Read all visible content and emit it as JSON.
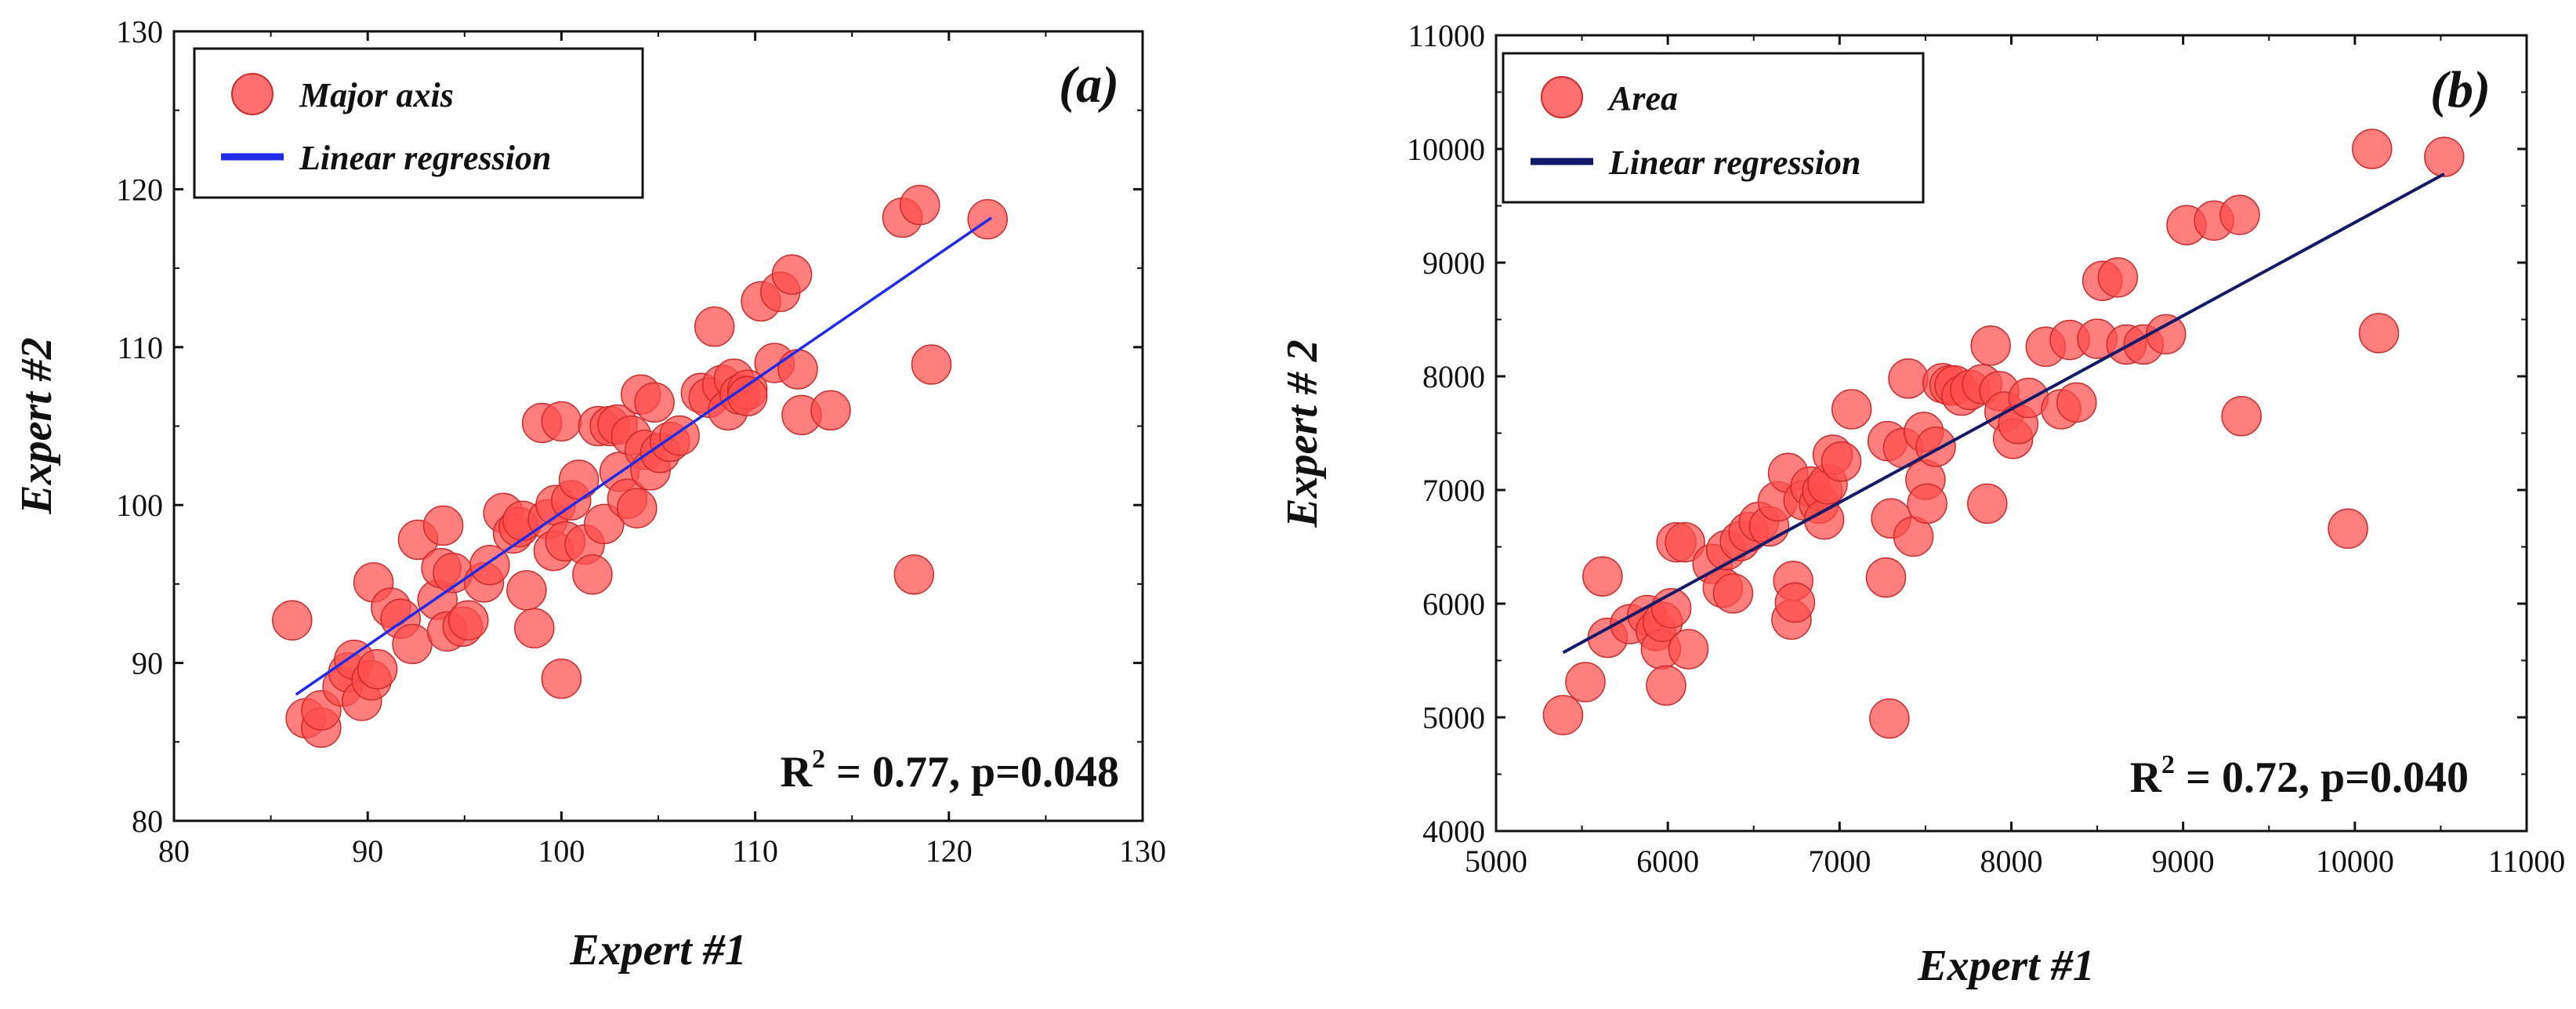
{
  "chart_data": [
    {
      "type": "scatter",
      "panel_label": "(a)",
      "xlabel": "Expert #1",
      "ylabel": "Expert #2",
      "xlim": [
        80,
        130
      ],
      "ylim": [
        80,
        130
      ],
      "xticks": [
        "80",
        "90",
        "100",
        "110",
        "120",
        "130"
      ],
      "yticks": [
        "80",
        "90",
        "100",
        "110",
        "120",
        "130"
      ],
      "legend": {
        "position": "top-left",
        "points_label": "Major axis",
        "line_label": "Linear regression"
      },
      "annotation": {
        "r2_label": "R",
        "r2_sup": "2",
        "r2_value": " = 0.77, p=0.048"
      },
      "regression": {
        "x": [
          86.3,
          122.2
        ],
        "y": [
          88.0,
          118.2
        ]
      },
      "colors": {
        "point_fill": "#ff4d4d",
        "point_stroke": "#cc2a2a",
        "line": "#1f2be6"
      },
      "points": [
        [
          86.1,
          92.7
        ],
        [
          86.8,
          86.5
        ],
        [
          87.6,
          85.9
        ],
        [
          87.6,
          87.0
        ],
        [
          88.7,
          88.5
        ],
        [
          89.0,
          89.4
        ],
        [
          89.3,
          90.2
        ],
        [
          89.7,
          87.6
        ],
        [
          90.2,
          88.9
        ],
        [
          90.5,
          89.6
        ],
        [
          90.3,
          95.1
        ],
        [
          91.2,
          93.5
        ],
        [
          91.7,
          92.8
        ],
        [
          92.3,
          91.2
        ],
        [
          92.6,
          97.8
        ],
        [
          93.6,
          94.0
        ],
        [
          93.8,
          96.0
        ],
        [
          93.9,
          98.7
        ],
        [
          94.1,
          92.0
        ],
        [
          94.4,
          95.7
        ],
        [
          94.9,
          92.3
        ],
        [
          95.2,
          92.7
        ],
        [
          96.0,
          95.1
        ],
        [
          96.3,
          96.2
        ],
        [
          97.0,
          99.5
        ],
        [
          97.5,
          98.2
        ],
        [
          97.8,
          98.6
        ],
        [
          98.0,
          99.0
        ],
        [
          98.2,
          94.6
        ],
        [
          98.6,
          92.2
        ],
        [
          99.0,
          105.2
        ],
        [
          99.3,
          99.1
        ],
        [
          99.6,
          97.1
        ],
        [
          99.7,
          100.0
        ],
        [
          100.0,
          89.0
        ],
        [
          100.0,
          105.3
        ],
        [
          100.2,
          97.7
        ],
        [
          100.5,
          100.3
        ],
        [
          100.9,
          101.6
        ],
        [
          101.2,
          97.5
        ],
        [
          101.6,
          95.6
        ],
        [
          101.9,
          105.0
        ],
        [
          102.2,
          98.8
        ],
        [
          102.5,
          105.0
        ],
        [
          102.9,
          105.1
        ],
        [
          103.0,
          102.1
        ],
        [
          103.4,
          100.4
        ],
        [
          103.6,
          104.4
        ],
        [
          103.9,
          99.8
        ],
        [
          104.1,
          107.0
        ],
        [
          104.3,
          103.5
        ],
        [
          104.6,
          102.2
        ],
        [
          104.8,
          106.5
        ],
        [
          105.1,
          103.3
        ],
        [
          105.6,
          104.0
        ],
        [
          106.1,
          104.4
        ],
        [
          107.2,
          107.1
        ],
        [
          107.6,
          106.8
        ],
        [
          107.9,
          111.3
        ],
        [
          108.3,
          107.6
        ],
        [
          108.6,
          106.0
        ],
        [
          108.9,
          108.0
        ],
        [
          109.2,
          107.0
        ],
        [
          109.6,
          107.3
        ],
        [
          109.6,
          106.9
        ],
        [
          110.3,
          112.9
        ],
        [
          111.0,
          109.0
        ],
        [
          111.3,
          113.5
        ],
        [
          111.9,
          114.6
        ],
        [
          112.2,
          108.6
        ],
        [
          112.4,
          105.7
        ],
        [
          113.9,
          106.0
        ],
        [
          117.6,
          118.2
        ],
        [
          118.2,
          95.6
        ],
        [
          118.5,
          119.0
        ],
        [
          119.1,
          108.9
        ],
        [
          122.0,
          118.1
        ]
      ]
    },
    {
      "type": "scatter",
      "panel_label": "(b)",
      "xlabel": "Expert #1",
      "ylabel": "Expert # 2",
      "xlim": [
        5000,
        11000
      ],
      "ylim": [
        4000,
        11000
      ],
      "xticks": [
        "5000",
        "6000",
        "7000",
        "8000",
        "9000",
        "10000",
        "11000"
      ],
      "yticks": [
        "4000",
        "5000",
        "6000",
        "7000",
        "8000",
        "9000",
        "10000",
        "11000"
      ],
      "legend": {
        "position": "top-left",
        "points_label": "Area",
        "line_label": "Linear regression"
      },
      "annotation": {
        "r2_label": "R",
        "r2_sup": "2",
        "r2_value": " = 0.72, p=0.040"
      },
      "regression": {
        "x": [
          5390,
          10520
        ],
        "y": [
          5570,
          9780
        ]
      },
      "colors": {
        "point_fill": "#ff4d4d",
        "point_stroke": "#cc2a2a",
        "line": "#141a6a"
      },
      "points": [
        [
          5390,
          5020
        ],
        [
          5520,
          5310
        ],
        [
          5620,
          6240
        ],
        [
          5650,
          5700
        ],
        [
          5780,
          5820
        ],
        [
          5880,
          5900
        ],
        [
          5930,
          5760
        ],
        [
          5960,
          5600
        ],
        [
          5970,
          5840
        ],
        [
          5990,
          5280
        ],
        [
          6020,
          5960
        ],
        [
          6050,
          6540
        ],
        [
          6100,
          6540
        ],
        [
          6120,
          5600
        ],
        [
          6260,
          6350
        ],
        [
          6320,
          6140
        ],
        [
          6340,
          6470
        ],
        [
          6380,
          6090
        ],
        [
          6420,
          6550
        ],
        [
          6470,
          6630
        ],
        [
          6530,
          6720
        ],
        [
          6590,
          6680
        ],
        [
          6640,
          6900
        ],
        [
          6700,
          7150
        ],
        [
          6720,
          5860
        ],
        [
          6730,
          6200
        ],
        [
          6740,
          6010
        ],
        [
          6790,
          6910
        ],
        [
          6830,
          7030
        ],
        [
          6880,
          6880
        ],
        [
          6900,
          6990
        ],
        [
          6910,
          6740
        ],
        [
          6930,
          7050
        ],
        [
          6960,
          7310
        ],
        [
          7010,
          7250
        ],
        [
          7070,
          7710
        ],
        [
          7270,
          6230
        ],
        [
          7280,
          7430
        ],
        [
          7290,
          4990
        ],
        [
          7300,
          6750
        ],
        [
          7370,
          7370
        ],
        [
          7400,
          7980
        ],
        [
          7430,
          6590
        ],
        [
          7490,
          7510
        ],
        [
          7500,
          7090
        ],
        [
          7510,
          6880
        ],
        [
          7560,
          7380
        ],
        [
          7600,
          7940
        ],
        [
          7640,
          7920
        ],
        [
          7670,
          7920
        ],
        [
          7710,
          7830
        ],
        [
          7760,
          7880
        ],
        [
          7830,
          7930
        ],
        [
          7860,
          6880
        ],
        [
          7880,
          8270
        ],
        [
          7930,
          7870
        ],
        [
          7960,
          7690
        ],
        [
          8010,
          7450
        ],
        [
          8040,
          7580
        ],
        [
          8100,
          7810
        ],
        [
          8200,
          8260
        ],
        [
          8290,
          7710
        ],
        [
          8340,
          8320
        ],
        [
          8380,
          7770
        ],
        [
          8500,
          8330
        ],
        [
          8530,
          8840
        ],
        [
          8620,
          8870
        ],
        [
          8670,
          8280
        ],
        [
          8770,
          8280
        ],
        [
          8900,
          8370
        ],
        [
          9020,
          9330
        ],
        [
          9180,
          9370
        ],
        [
          9330,
          9420
        ],
        [
          9340,
          7650
        ],
        [
          9960,
          6660
        ],
        [
          10100,
          10000
        ],
        [
          10140,
          8380
        ],
        [
          10520,
          9930
        ]
      ]
    }
  ]
}
